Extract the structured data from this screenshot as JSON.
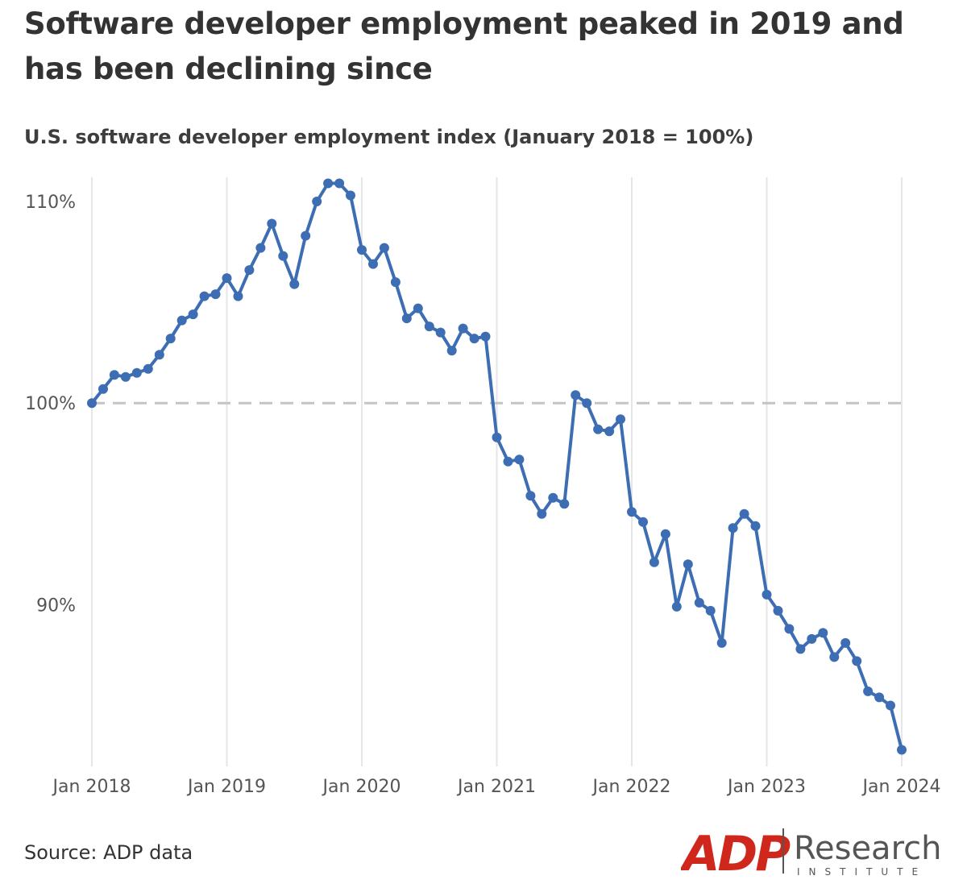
{
  "title": "Software developer employment peaked in 2019 and has been declining since",
  "subtitle": "U.S. software developer employment index (January 2018 = 100%)",
  "source": "Source: ADP data",
  "logo": {
    "brand": "ADP",
    "name": "Research",
    "tagline": "INSTITUTE"
  },
  "colors": {
    "line": "#3d6db2",
    "reference": "#c4c4c4",
    "grid": "#e6e6e6",
    "logo_red": "#d0271d",
    "logo_text": "#555555"
  },
  "chart_data": {
    "type": "line",
    "title": "Software developer employment peaked in 2019 and has been declining since",
    "ylabel": "U.S. software developer employment index (January 2018 = 100%)",
    "xlabel": "",
    "x_ticks": [
      "Jan 2018",
      "Jan 2019",
      "Jan 2020",
      "Jan 2021",
      "Jan 2022",
      "Jan 2023",
      "Jan 2024"
    ],
    "y_ticks": [
      "90%",
      "100%",
      "110%"
    ],
    "y_tick_values": [
      90,
      100,
      110
    ],
    "ylim": [
      82.3,
      111.2
    ],
    "xlim": [
      "2018-01",
      "2024-01"
    ],
    "reference_line": {
      "y": 100,
      "style": "dashed"
    },
    "grid": "vertical",
    "series": [
      {
        "x": [
          "2018-01",
          "2018-02",
          "2018-03",
          "2018-04",
          "2018-05",
          "2018-06",
          "2018-07",
          "2018-08",
          "2018-09",
          "2018-10",
          "2018-11",
          "2018-12",
          "2019-01",
          "2019-02",
          "2019-03",
          "2019-04",
          "2019-05",
          "2019-06",
          "2019-07",
          "2019-08",
          "2019-09",
          "2019-10",
          "2019-11",
          "2019-12",
          "2020-01",
          "2020-02",
          "2020-03",
          "2020-04",
          "2020-05",
          "2020-06",
          "2020-07",
          "2020-08",
          "2020-09",
          "2020-10",
          "2020-11",
          "2020-12",
          "2021-01",
          "2021-02",
          "2021-03",
          "2021-04",
          "2021-05",
          "2021-06",
          "2021-07",
          "2021-08",
          "2021-09",
          "2021-10",
          "2021-11",
          "2021-12",
          "2022-01",
          "2022-02",
          "2022-03",
          "2022-04",
          "2022-05",
          "2022-06",
          "2022-07",
          "2022-08",
          "2022-09",
          "2022-10",
          "2022-11",
          "2022-12",
          "2023-01",
          "2023-02",
          "2023-03",
          "2023-04",
          "2023-05",
          "2023-06",
          "2023-07",
          "2023-08",
          "2023-09",
          "2023-10",
          "2023-11",
          "2023-12",
          "2024-01"
        ],
        "values": [
          100.0,
          100.7,
          101.4,
          101.3,
          101.5,
          101.7,
          102.4,
          103.2,
          104.1,
          104.4,
          105.3,
          105.4,
          106.2,
          105.3,
          106.6,
          107.7,
          108.9,
          107.3,
          105.9,
          108.3,
          110.0,
          110.9,
          110.9,
          110.3,
          107.6,
          106.9,
          107.7,
          106.0,
          104.2,
          104.7,
          103.8,
          103.5,
          102.6,
          103.7,
          103.2,
          103.3,
          98.3,
          97.1,
          97.2,
          95.4,
          94.5,
          95.3,
          95.0,
          100.4,
          100.0,
          98.7,
          98.6,
          99.2,
          94.6,
          94.1,
          92.1,
          93.5,
          89.9,
          92.0,
          90.1,
          89.7,
          88.1,
          93.8,
          94.5,
          93.9,
          90.5,
          89.7,
          88.8,
          87.8,
          88.3,
          88.6,
          87.4,
          88.1,
          87.2,
          85.7,
          85.4,
          85.0,
          82.8
        ]
      }
    ]
  }
}
